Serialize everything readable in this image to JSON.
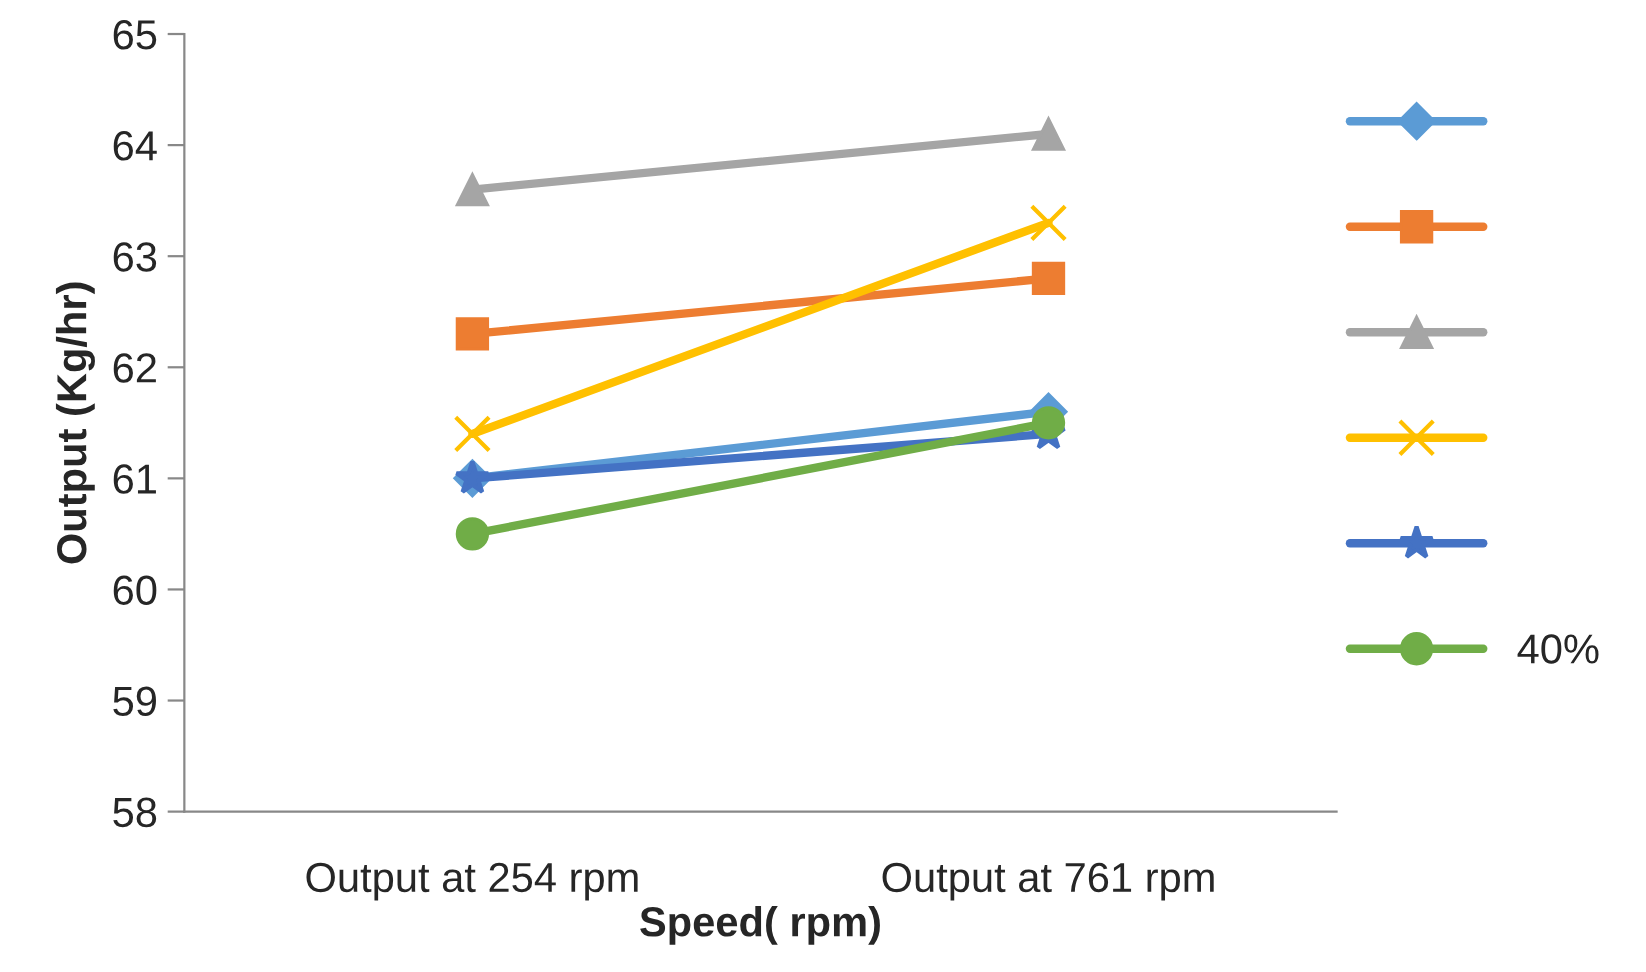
{
  "chart_data": {
    "type": "line",
    "xlabel": "Speed( rpm)",
    "ylabel": "Output (Kg/hr)",
    "categories": [
      "Output at 254 rpm",
      "Output at 761 rpm"
    ],
    "ylim": [
      58,
      65
    ],
    "yticks": [
      58,
      59,
      60,
      61,
      62,
      63,
      64,
      65
    ],
    "grid": false,
    "legend": "right",
    "series": [
      {
        "color": "#5b9bd5",
        "marker": "diamond",
        "values": [
          61.0,
          61.6
        ]
      },
      {
        "color": "#ed7d31",
        "marker": "square",
        "values": [
          62.3,
          62.8
        ]
      },
      {
        "color": "#a5a5a5",
        "marker": "triangle",
        "values": [
          63.6,
          64.1
        ]
      },
      {
        "color": "#ffc000",
        "marker": "cross",
        "values": [
          61.4,
          63.3
        ]
      },
      {
        "color": "#4472c4",
        "marker": "star",
        "values": [
          61.0,
          61.4
        ]
      },
      {
        "name": "40%",
        "color": "#70ad47",
        "marker": "circle",
        "values": [
          60.5,
          61.5
        ]
      }
    ]
  }
}
